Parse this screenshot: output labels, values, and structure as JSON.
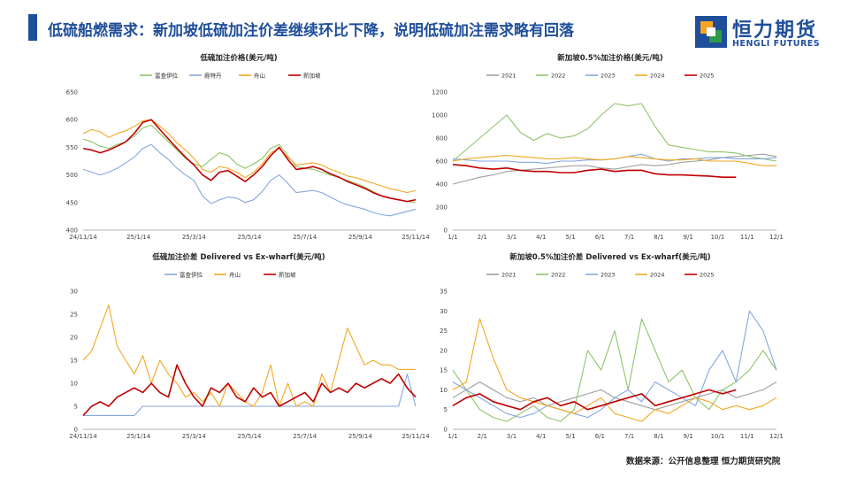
{
  "header": {
    "title": "低硫船燃需求：新加坡低硫加注价差继续环比下降，说明低硫加注需求略有回落"
  },
  "logo": {
    "cn": "恒力期货",
    "en": "HENGLI FUTURES",
    "colors": [
      "#1f4e9a",
      "#f5a623",
      "#2e9b48"
    ]
  },
  "footer": {
    "source": "数据来源：公开信息整理  恒力期货研究院"
  },
  "chart_data": [
    {
      "type": "line",
      "title": "低硫加注价格(美元/吨)",
      "legend_position": "top",
      "ylim": [
        400,
        650
      ],
      "yticks": [
        "650",
        "600",
        "550",
        "500",
        "450",
        "400"
      ],
      "xticks": [
        "24/11/14",
        "25/1/14",
        "25/3/14",
        "25/5/14",
        "25/7/14",
        "25/9/14",
        "25/11/14"
      ],
      "series": [
        {
          "name": "富查伊拉",
          "color": "#8fc46a",
          "values": [
            565,
            560,
            552,
            548,
            555,
            560,
            570,
            585,
            590,
            575,
            560,
            545,
            530,
            520,
            515,
            528,
            540,
            535,
            520,
            512,
            520,
            530,
            548,
            555,
            535,
            515,
            512,
            510,
            505,
            500,
            495,
            490,
            485,
            478,
            470,
            462,
            458,
            455,
            452,
            450
          ]
        },
        {
          "name": "鹿特丹",
          "color": "#86a6e0",
          "values": [
            510,
            505,
            500,
            505,
            512,
            522,
            532,
            548,
            555,
            540,
            528,
            512,
            500,
            490,
            462,
            448,
            455,
            460,
            458,
            450,
            455,
            470,
            490,
            500,
            485,
            468,
            470,
            472,
            468,
            460,
            452,
            446,
            442,
            438,
            432,
            428,
            426,
            430,
            434,
            438
          ]
        },
        {
          "name": "舟山",
          "color": "#f2a821",
          "values": [
            575,
            582,
            578,
            568,
            575,
            580,
            588,
            598,
            600,
            588,
            575,
            558,
            545,
            530,
            510,
            505,
            515,
            512,
            505,
            495,
            505,
            520,
            540,
            548,
            532,
            518,
            520,
            522,
            518,
            510,
            505,
            498,
            495,
            490,
            485,
            480,
            475,
            472,
            468,
            472
          ]
        },
        {
          "name": "新加坡",
          "color": "#c00000",
          "values": [
            548,
            545,
            540,
            545,
            552,
            560,
            575,
            595,
            600,
            582,
            565,
            548,
            532,
            518,
            500,
            490,
            505,
            508,
            498,
            488,
            500,
            515,
            535,
            550,
            528,
            510,
            512,
            515,
            510,
            502,
            496,
            488,
            482,
            476,
            468,
            462,
            458,
            455,
            452,
            455
          ]
        }
      ]
    },
    {
      "type": "line",
      "title": "新加坡0.5%加注价格(美元/吨)",
      "legend_position": "top",
      "ylim": [
        0,
        1200
      ],
      "yticks": [
        "1200",
        "1000",
        "800",
        "600",
        "400",
        "200",
        "0"
      ],
      "xticks": [
        "1/1",
        "2/1",
        "3/1",
        "4/1",
        "5/1",
        "6/1",
        "7/1",
        "8/1",
        "9/1",
        "10/1",
        "11/1",
        "12/1"
      ],
      "series": [
        {
          "name": "2021",
          "color": "#9e9e9e",
          "values": [
            400,
            430,
            460,
            480,
            510,
            520,
            530,
            540,
            550,
            560,
            560,
            540,
            530,
            550,
            570,
            560,
            570,
            590,
            600,
            610,
            630,
            640,
            650,
            660,
            640
          ]
        },
        {
          "name": "2022",
          "color": "#8fc46a",
          "values": [
            600,
            700,
            800,
            900,
            1000,
            850,
            780,
            840,
            800,
            820,
            880,
            1000,
            1100,
            1080,
            1100,
            900,
            740,
            720,
            700,
            680,
            680,
            670,
            640,
            620,
            600
          ]
        },
        {
          "name": "2023",
          "color": "#86a6e0",
          "values": [
            620,
            610,
            600,
            600,
            600,
            590,
            590,
            580,
            600,
            600,
            610,
            610,
            620,
            640,
            660,
            620,
            600,
            620,
            620,
            630,
            630,
            620,
            620,
            620,
            630
          ]
        },
        {
          "name": "2024",
          "color": "#f2a821",
          "values": [
            600,
            620,
            630,
            640,
            650,
            640,
            630,
            620,
            620,
            630,
            620,
            610,
            620,
            640,
            630,
            620,
            610,
            610,
            620,
            600,
            600,
            600,
            580,
            560,
            560
          ]
        },
        {
          "name": "2025",
          "color": "#c00000",
          "values": [
            570,
            560,
            540,
            530,
            540,
            520,
            510,
            510,
            500,
            500,
            520,
            530,
            510,
            520,
            520,
            490,
            480,
            480,
            475,
            470,
            460,
            460
          ]
        }
      ]
    },
    {
      "type": "line",
      "title": "低硫加注价差 Delivered vs Ex-wharf(美元/吨)",
      "legend_position": "top",
      "ylim": [
        0,
        30
      ],
      "yticks": [
        "30",
        "25",
        "20",
        "15",
        "10",
        "5",
        "0"
      ],
      "xticks": [
        "24/11/14",
        "25/1/14",
        "25/3/14",
        "25/5/14",
        "25/7/14",
        "25/9/14",
        "25/11/14"
      ],
      "series": [
        {
          "name": "富查伊拉",
          "color": "#86a6e0",
          "values": [
            3,
            3,
            3,
            3,
            3,
            3,
            3,
            5,
            5,
            5,
            5,
            5,
            5,
            5,
            5,
            5,
            5,
            5,
            5,
            5,
            5,
            5,
            5,
            5,
            5,
            5,
            5,
            5,
            5,
            5,
            5,
            5,
            5,
            5,
            5,
            5,
            5,
            5,
            12,
            5
          ]
        },
        {
          "name": "舟山",
          "color": "#f2a821",
          "values": [
            15,
            17,
            22,
            27,
            18,
            15,
            12,
            16,
            10,
            15,
            12,
            10,
            7,
            8,
            6,
            8,
            5,
            10,
            8,
            6,
            5,
            8,
            14,
            5,
            10,
            5,
            6,
            5,
            12,
            8,
            15,
            22,
            18,
            14,
            15,
            14,
            14,
            13,
            13,
            13
          ]
        },
        {
          "name": "新加坡",
          "color": "#c00000",
          "values": [
            3,
            5,
            6,
            5,
            7,
            8,
            9,
            8,
            10,
            8,
            7,
            14,
            10,
            7,
            5,
            9,
            8,
            10,
            7,
            6,
            9,
            7,
            8,
            5,
            6,
            7,
            8,
            6,
            10,
            8,
            9,
            8,
            10,
            9,
            10,
            11,
            10,
            12,
            9,
            7
          ]
        }
      ]
    },
    {
      "type": "line",
      "title": "新加坡0.5%加注价差 Delivered vs Ex-wharf(美元/吨)",
      "legend_position": "top",
      "ylim": [
        0,
        35
      ],
      "yticks": [
        "35",
        "30",
        "25",
        "20",
        "15",
        "10",
        "5",
        "0"
      ],
      "xticks": [
        "1/1",
        "2/1",
        "3/1",
        "4/1",
        "5/1",
        "6/1",
        "7/1",
        "8/1",
        "9/1",
        "10/1",
        "11/1",
        "12/1"
      ],
      "series": [
        {
          "name": "2021",
          "color": "#9e9e9e",
          "values": [
            8,
            10,
            12,
            10,
            8,
            7,
            8,
            6,
            7,
            8,
            9,
            10,
            8,
            7,
            6,
            5,
            6,
            7,
            8,
            9,
            10,
            8,
            9,
            10,
            12
          ]
        },
        {
          "name": "2022",
          "color": "#8fc46a",
          "values": [
            15,
            10,
            5,
            3,
            2,
            4,
            6,
            3,
            2,
            5,
            20,
            15,
            25,
            10,
            28,
            20,
            12,
            15,
            8,
            5,
            10,
            12,
            15,
            20,
            15
          ]
        },
        {
          "name": "2023",
          "color": "#86a6e0",
          "values": [
            12,
            10,
            8,
            6,
            4,
            3,
            4,
            6,
            5,
            4,
            3,
            5,
            8,
            10,
            7,
            12,
            10,
            8,
            6,
            15,
            20,
            12,
            30,
            25,
            15
          ]
        },
        {
          "name": "2024",
          "color": "#f2a821",
          "values": [
            10,
            12,
            28,
            18,
            10,
            8,
            7,
            6,
            5,
            4,
            6,
            8,
            4,
            3,
            2,
            5,
            4,
            6,
            8,
            7,
            5,
            6,
            5,
            6,
            8
          ]
        },
        {
          "name": "2025",
          "color": "#c00000",
          "values": [
            6,
            8,
            9,
            7,
            6,
            5,
            7,
            8,
            6,
            7,
            5,
            6,
            7,
            8,
            9,
            6,
            7,
            8,
            9,
            10,
            9,
            10
          ]
        }
      ]
    }
  ]
}
